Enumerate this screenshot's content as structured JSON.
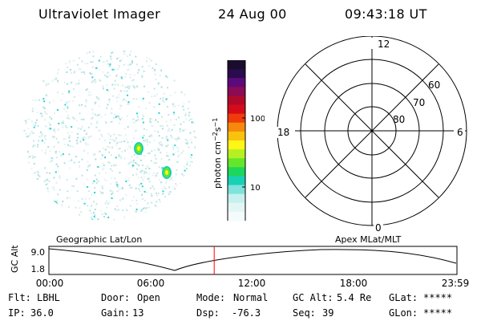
{
  "title": {
    "app": "Ultraviolet Imager",
    "date": "24 Aug 00",
    "time": "09:43:18 UT"
  },
  "colorbar": {
    "label": "photon cm-2s-1",
    "ticks": [
      "100",
      "10"
    ],
    "colors": [
      "#1a0d2b",
      "#2a0b4d",
      "#5c0a7a",
      "#8b0b55",
      "#b00a2a",
      "#d50b1b",
      "#f03c0a",
      "#f6890c",
      "#f9c20f",
      "#fff516",
      "#b5f122",
      "#64e62b",
      "#1cd75b",
      "#18d0b5",
      "#7fe2dc",
      "#c6f0ee",
      "#e2f6f5",
      "#f4fbfb"
    ]
  },
  "polar": {
    "labels": {
      "top": "12",
      "left": "18",
      "right": "6",
      "bottom": "0",
      "ring60": "60",
      "ring70": "70",
      "ring80": "80"
    }
  },
  "timeline": {
    "left_title": "Geographic Lat/Lon",
    "right_title": "Apex MLat/MLT",
    "ylabel": "GC Alt",
    "y_ticks": [
      "9.0",
      "1.8"
    ],
    "x_ticks": [
      "00:00",
      "06:00",
      "12:00",
      "18:00",
      "23:59"
    ],
    "marker_time": "09:43:18",
    "marker_color": "#ff0000"
  },
  "footer": {
    "row1": [
      {
        "label": "Flt:",
        "value": "LBHL"
      },
      {
        "label": "Door:",
        "value": "Open"
      },
      {
        "label": "Mode:",
        "value": "Normal"
      },
      {
        "label": "GC Alt:",
        "value": "5.4 Re"
      },
      {
        "label": "GLat:",
        "value": "*****"
      }
    ],
    "row2": [
      {
        "label": "IP:",
        "value": "36.0"
      },
      {
        "label": "Gain:",
        "value": "13"
      },
      {
        "label": "Dsp:",
        "value": "-76.3"
      },
      {
        "label": "Seq:",
        "value": "39"
      },
      {
        "label": "GLon:",
        "value": "*****"
      }
    ]
  }
}
